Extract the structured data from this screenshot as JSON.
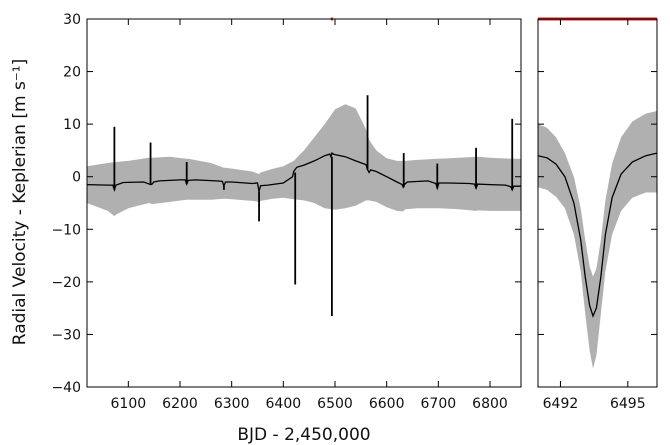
{
  "chart_data": {
    "type": "line",
    "xlabel": "BJD - 2,450,000",
    "ylabel": "Radial Velocity - Keplerian [m s⁻¹]",
    "ylim": [
      -40,
      30
    ],
    "yticks": [
      30,
      20,
      10,
      0,
      -10,
      -20,
      -30,
      -40
    ],
    "colors": {
      "line": "#000000",
      "band": "#b0b0b0",
      "highlight": "#dd2222"
    },
    "panels": [
      {
        "name": "main",
        "xlim": [
          6020,
          6860
        ],
        "xticks": [
          6100,
          6200,
          6300,
          6400,
          6500,
          6600,
          6700,
          6800
        ],
        "highlight_range": [
          6492,
          6496
        ],
        "series": [
          {
            "name": "",
            "style": "line",
            "x": [
              6020,
              6060,
              6070,
              6073,
              6076,
              6090,
              6130,
              6143,
              6146,
              6149,
              6160,
              6200,
              6210,
              6213,
              6216,
              6230,
              6270,
              6282,
              6285,
              6288,
              6300,
              6340,
              6350,
              6353,
              6356,
              6370,
              6400,
              6418,
              6420,
              6424,
              6426,
              6440,
              6460,
              6480,
              6490,
              6492,
              6494,
              6497,
              6500,
              6520,
              6540,
              6560,
              6563,
              6566,
              6569,
              6580,
              6600,
              6620,
              6630,
              6632,
              6635,
              6640,
              6680,
              6695,
              6698,
              6701,
              6720,
              6760,
              6770,
              6773,
              6776,
              6800,
              6830,
              6840,
              6843,
              6846,
              6860
            ],
            "y": [
              -1.5,
              -1.6,
              -1.6,
              -2.5,
              -1.6,
              -1.1,
              -1,
              -1.5,
              -1.4,
              -1.0,
              -0.8,
              -0.6,
              -0.6,
              -1.4,
              -0.7,
              -0.6,
              -0.8,
              -0.9,
              -1.8,
              -1.0,
              -1.0,
              -1.3,
              -1.2,
              -2.8,
              -1.7,
              -1.6,
              -1.2,
              0.0,
              1.0,
              1.5,
              1.8,
              2.2,
              3.0,
              4.0,
              4.3,
              3.8,
              4.5,
              4.3,
              4.2,
              3.8,
              3.0,
              2.3,
              1.3,
              0.8,
              1.3,
              1.0,
              0.0,
              -1.0,
              -1.5,
              -2.0,
              -1.4,
              -1.0,
              -0.8,
              -1.3,
              -2.2,
              -1.2,
              -1.2,
              -1.3,
              -1.4,
              -2.2,
              -1.4,
              -1.5,
              -1.6,
              -1.9,
              -2.5,
              -1.8,
              -1.8
            ]
          },
          {
            "name": "",
            "style": "band",
            "x": [
              6020,
              6060,
              6073,
              6076,
              6100,
              6140,
              6146,
              6180,
              6213,
              6216,
              6260,
              6285,
              6288,
              6340,
              6353,
              6356,
              6380,
              6400,
              6420,
              6440,
              6460,
              6480,
              6500,
              6520,
              6540,
              6560,
              6566,
              6580,
              6600,
              6620,
              6632,
              6636,
              6660,
              6698,
              6701,
              6740,
              6773,
              6776,
              6800,
              6843,
              6846,
              6860
            ],
            "upper": [
              2.0,
              2.6,
              2.8,
              2.8,
              3.0,
              3.6,
              3.6,
              3.8,
              3.4,
              3.4,
              2.6,
              1.7,
              1.7,
              1.0,
              0.5,
              0.8,
              1.5,
              2.0,
              3.0,
              5.0,
              7.5,
              10.0,
              12.8,
              13.8,
              13.0,
              9.0,
              7.0,
              5.0,
              3.5,
              3.0,
              3.0,
              3.0,
              3.2,
              3.4,
              3.4,
              3.6,
              3.8,
              3.8,
              3.6,
              3.4,
              3.4,
              3.4
            ],
            "lower": [
              -5.0,
              -6.5,
              -7.5,
              -7.2,
              -6.0,
              -5.0,
              -5.2,
              -4.8,
              -4.4,
              -4.4,
              -4.4,
              -4.2,
              -4.2,
              -4.6,
              -4.8,
              -4.6,
              -4.2,
              -4.0,
              -4.3,
              -4.5,
              -5.0,
              -6.0,
              -6.3,
              -6.0,
              -5.5,
              -4.5,
              -4.5,
              -4.8,
              -5.8,
              -6.5,
              -6.6,
              -6.2,
              -6.0,
              -6.0,
              -6.0,
              -6.2,
              -6.5,
              -6.4,
              -6.5,
              -6.5,
              -6.5,
              -6.5
            ]
          },
          {
            "name": "",
            "style": "spikes",
            "x": [
              6073,
              6143,
              6213,
              6285,
              6353,
              6423,
              6494,
              6563,
              6633,
              6698,
              6773,
              6843
            ],
            "y_from": [
              -2.5,
              -1.5,
              -1.4,
              -1.8,
              -2.8,
              0.8,
              3.8,
              1.3,
              -2.0,
              -2.2,
              -2.2,
              -2.5
            ],
            "y_to": [
              9.5,
              6.5,
              2.8,
              -2.5,
              -8.5,
              -20.5,
              -26.5,
              15.5,
              4.5,
              2.5,
              5.5,
              11.0
            ]
          }
        ]
      },
      {
        "name": "zoom",
        "xlim": [
          6491.0,
          6496.3
        ],
        "xticks": [
          6492,
          6495
        ],
        "series": [
          {
            "name": "",
            "style": "line",
            "x": [
              6491.0,
              6491.4,
              6491.8,
              6492.2,
              6492.6,
              6492.9,
              6493.1,
              6493.3,
              6493.45,
              6493.6,
              6493.8,
              6494.0,
              6494.3,
              6494.7,
              6495.2,
              6495.8,
              6496.3
            ],
            "y": [
              4.0,
              3.6,
              2.4,
              0.0,
              -5.0,
              -12.0,
              -19.0,
              -24.5,
              -26.5,
              -25.0,
              -19.0,
              -11.0,
              -4.0,
              0.5,
              2.8,
              4.0,
              4.5
            ]
          },
          {
            "name": "",
            "style": "band",
            "x": [
              6491.0,
              6491.4,
              6491.8,
              6492.2,
              6492.6,
              6492.9,
              6493.1,
              6493.3,
              6493.45,
              6493.6,
              6493.8,
              6494.0,
              6494.3,
              6494.7,
              6495.2,
              6495.8,
              6496.3
            ],
            "upper": [
              10.0,
              9.3,
              7.5,
              4.5,
              0.0,
              -6.0,
              -12.0,
              -17.0,
              -19.0,
              -17.5,
              -12.0,
              -4.5,
              2.5,
              7.5,
              10.5,
              12.0,
              12.5
            ],
            "lower": [
              -2.0,
              -2.5,
              -3.8,
              -6.0,
              -11.0,
              -18.0,
              -26.0,
              -33.0,
              -36.5,
              -34.0,
              -26.0,
              -18.0,
              -11.0,
              -6.5,
              -4.0,
              -3.0,
              -3.0
            ]
          }
        ]
      }
    ]
  }
}
